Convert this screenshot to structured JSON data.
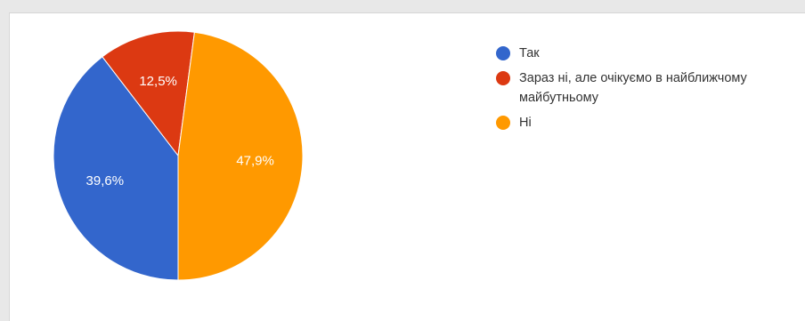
{
  "chart_data": {
    "type": "pie",
    "title": "",
    "series": [
      {
        "values": [
          39.6,
          12.5,
          47.9
        ]
      }
    ],
    "categories": [
      "Так",
      "Зараз ні, але очікуємо в найближчому майбутньому",
      "Ні"
    ],
    "value_labels": [
      "39,6%",
      "12,5%",
      "47,9%"
    ],
    "colors": [
      "#3366cc",
      "#dc3912",
      "#ff9900"
    ],
    "legend_placement": "right"
  }
}
